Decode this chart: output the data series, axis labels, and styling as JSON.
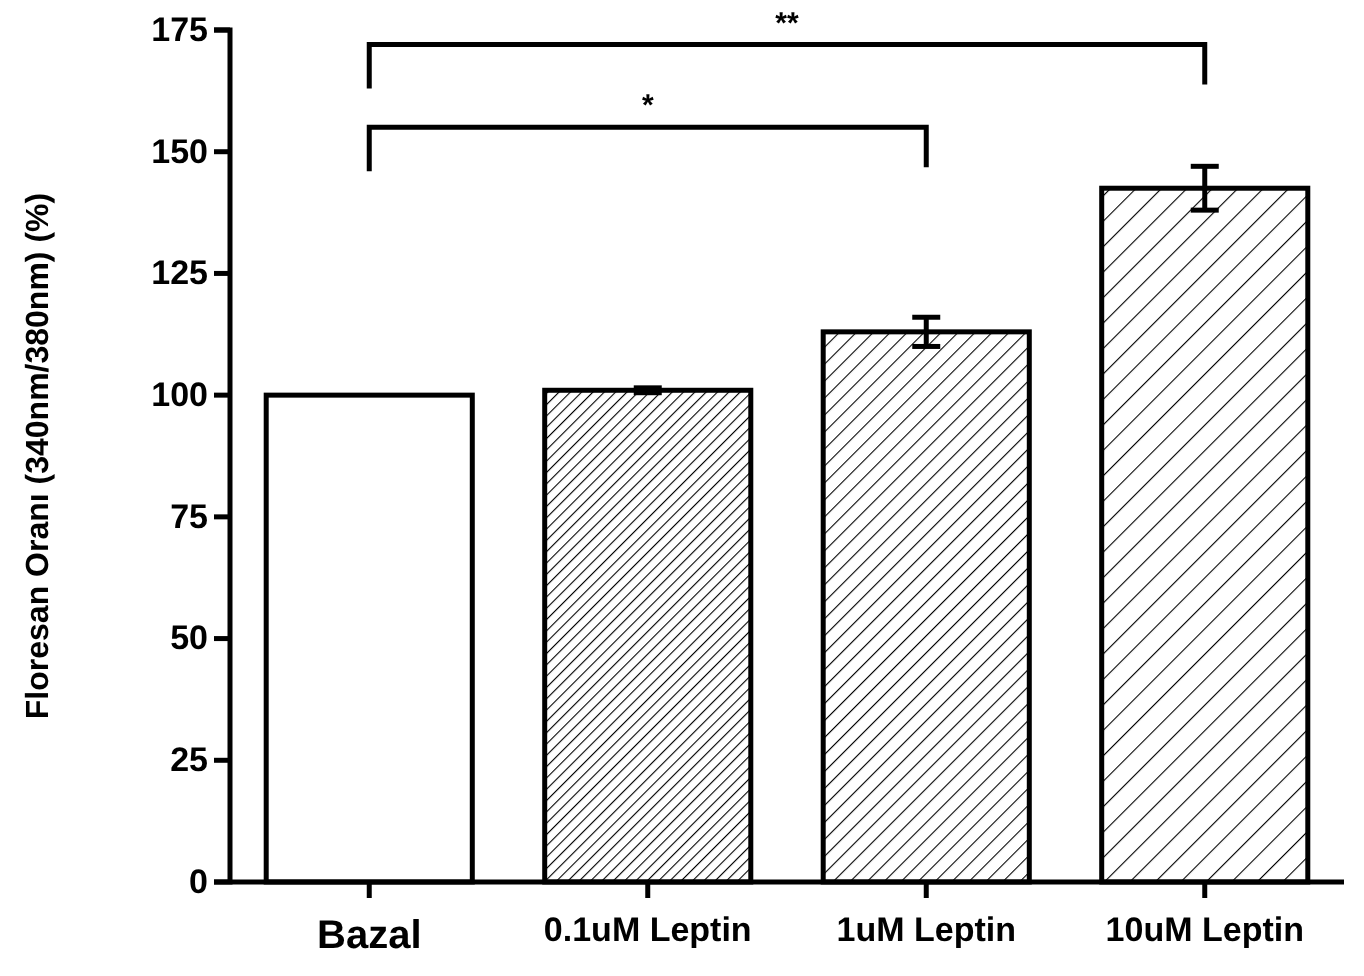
{
  "chart_data": {
    "type": "bar",
    "ylabel": "Floresan Oranı (340nm/380nm) (%)",
    "categories": [
      "Bazal",
      "0.1uM Leptin",
      "1uM Leptin",
      "10uM Leptin"
    ],
    "values": [
      100,
      101,
      113,
      142.5
    ],
    "errors": [
      null,
      0.5,
      3,
      4.5
    ],
    "colors": [
      "#000000",
      "#000000",
      "#000000",
      "#000000"
    ],
    "ylim": [
      0,
      175
    ],
    "yticks": [
      0,
      25,
      50,
      75,
      100,
      125,
      150,
      175
    ],
    "annotations": [
      "*",
      "**"
    ]
  }
}
